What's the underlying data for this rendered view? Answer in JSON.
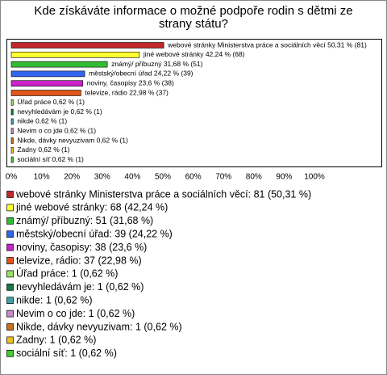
{
  "chart_data": {
    "type": "bar",
    "orientation": "horizontal",
    "title": "Kde získáváte informace o možné podpoře rodin s dětmi ze strany státu?",
    "categories": [
      "webové stránky Ministerstva práce a sociálních věcí: 81 (50,31 %)",
      "jiné webové stránky: 68 (42,24 %)",
      "známý/ příbuzný: 51 (31,68 %)",
      "městský/obecní úřad: 39 (24,22 %)",
      "noviny, časopisy: 38 (23,6 %)",
      "televize, rádio: 37 (22,98 %)",
      "Úřad práce: 1 (0,62 %)",
      "nevyhledávám je: 1 (0,62 %)",
      "nikde: 1 (0,62 %)",
      "Nevim o co jde: 1 (0,62 %)",
      "Nikde, dávky nevyuzivam: 1 (0,62 %)",
      "Zadny: 1 (0,62 %)",
      "sociální síť: 1 (0,62 %)"
    ],
    "values": [
      50.31,
      42.24,
      31.68,
      24.22,
      23.6,
      22.98,
      0.62,
      0.62,
      0.62,
      0.62,
      0.62,
      0.62,
      0.62
    ],
    "value_labels": [
      "webové stránky Ministerstva práce a sociálních věcí 50,31 % (81)",
      "jiné webové stránky 42,24 % (68)",
      "známý/ příbuzný 31,68 % (51)",
      "městský/obecní úřad 24,22 % (39)",
      "noviny, časopisy 23,6 % (38)",
      "televize, rádio 22,98 % (37)",
      "Úřad práce 0,62 % (1)",
      "nevyhledávám je 0,62 % (1)",
      "nikde 0,62 % (1)",
      "Nevim o co jde 0,62 % (1)",
      "Nikde, dávky nevyuzivam 0,62 % (1)",
      "Zadny 0,62 % (1)",
      "sociální síť 0,62 % (1)"
    ],
    "colors": [
      "#c0282a",
      "#ffff33",
      "#33bb33",
      "#3366ee",
      "#cc22cc",
      "#e0551a",
      "#99e066",
      "#177a44",
      "#3f9fa6",
      "#c98ad0",
      "#c8701e",
      "#f0c020",
      "#44cc33"
    ],
    "xlim": [
      0,
      100
    ],
    "xticks": [
      {
        "value": 0,
        "label": "0%"
      },
      {
        "value": 10,
        "label": "10%"
      },
      {
        "value": 20,
        "label": "20%"
      },
      {
        "value": 30,
        "label": "30%"
      },
      {
        "value": 40,
        "label": "40%"
      },
      {
        "value": 50,
        "label": "50%"
      },
      {
        "value": 60,
        "label": "60%"
      },
      {
        "value": 70,
        "label": "70%"
      },
      {
        "value": 80,
        "label": "80%"
      },
      {
        "value": 90,
        "label": "90%"
      },
      {
        "value": 100,
        "label": "100%"
      }
    ],
    "grid": false
  }
}
